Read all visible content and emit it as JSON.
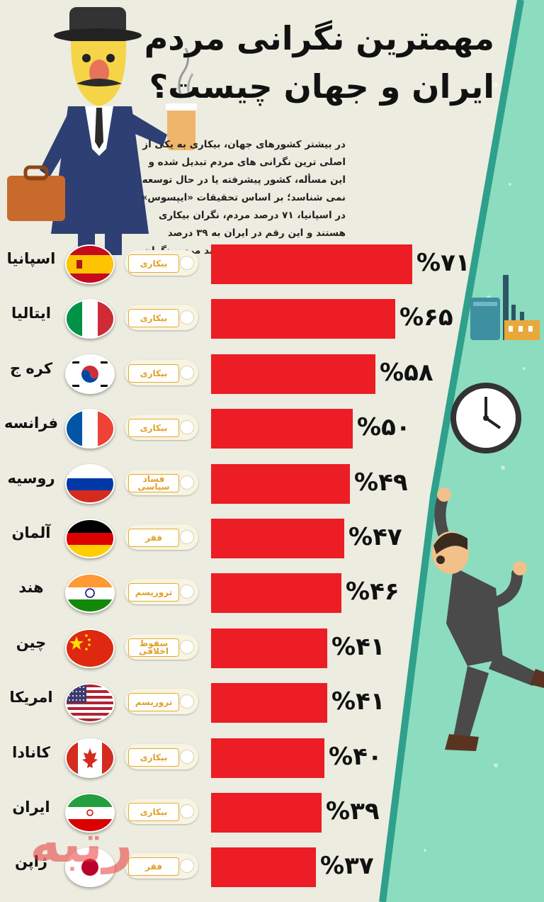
{
  "title_line1": "مهمترین نگرانی مردم",
  "title_line2": "ایران و جهان چیست؟",
  "intro": "در بیشتر کشورهای جهان، بیکاری به یکی از اصلی ترین نگرانی های مردم تبدیل شده و این مسأله، کشور پیشرفته یا در حال توسعه نمی شناسد؛ بر اساس تحقیقات «ایپسوس» در اسپانیا، ۷۱ درصد مردم، نگران بیکاری هستند و این رقم در ایران به ۳۹ درصد میرسد. در روسیه اما ۴۹ درصد مردم، نگران فساد سیاسی هستند.",
  "watermark": "رتبه",
  "colors": {
    "bar": "#ec1d24",
    "tag_border": "#e6aa2c",
    "background": "#ecece0",
    "mint": "#8cdcc0",
    "teal": "#2fa08c"
  },
  "chart_data": {
    "type": "bar",
    "orientation": "horizontal",
    "categories": [
      "اسپانیا",
      "ایتالیا",
      "کره ج",
      "فرانسه",
      "روسیه",
      "آلمان",
      "هند",
      "چین",
      "امریکا",
      "کانادا",
      "ایران",
      "ژاپن"
    ],
    "values": [
      71,
      65,
      58,
      50,
      49,
      47,
      46,
      41,
      41,
      40,
      39,
      37
    ],
    "value_labels": [
      "%۷۱",
      "%۶۵",
      "%۵۸",
      "%۵۰",
      "%۴۹",
      "%۴۷",
      "%۴۶",
      "%۴۱",
      "%۴۱",
      "%۴۰",
      "%۳۹",
      "%۳۷"
    ],
    "concerns": [
      "بیکاری",
      "بیکاری",
      "بیکاری",
      "بیکاری",
      "فساد سیاسی",
      "فقر",
      "تروریسم",
      "سقوط اخلاقی",
      "تروریسم",
      "بیکاری",
      "بیکاری",
      "فقر"
    ],
    "flags": [
      "spain",
      "italy",
      "south-korea",
      "france",
      "russia",
      "germany",
      "india",
      "china",
      "usa",
      "canada",
      "iran",
      "japan"
    ],
    "xlim": [
      0,
      100
    ]
  }
}
